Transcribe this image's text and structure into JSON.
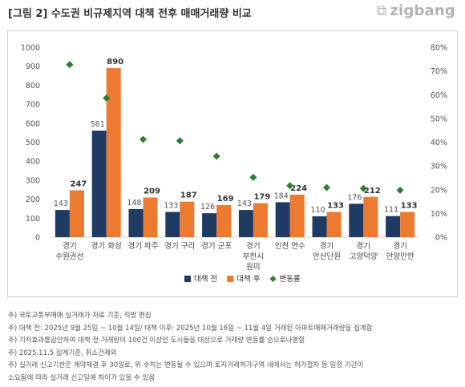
{
  "title": "[그림 2] 수도권 비규제지역 대책 전후 매매거래량 비교",
  "logo": {
    "icon": "zigbang-logo-icon",
    "text": "zigbang"
  },
  "chart_data": {
    "type": "bar",
    "categories": [
      [
        "경기",
        "수원권선"
      ],
      [
        "경기 화성"
      ],
      [
        "경기 파주"
      ],
      [
        "경기 구리"
      ],
      [
        "경기 군포"
      ],
      [
        "경기",
        "부천시",
        "원미"
      ],
      [
        "인천 연수"
      ],
      [
        "경기",
        "안산단원"
      ],
      [
        "경기",
        "고양덕양"
      ],
      [
        "경기",
        "안양만안"
      ]
    ],
    "series": [
      {
        "name": "대책 전",
        "type": "bar",
        "axis": "left",
        "color": "#1f3a63",
        "values": [
          143,
          561,
          148,
          133,
          126,
          143,
          184,
          110,
          176,
          111
        ]
      },
      {
        "name": "대책 후",
        "type": "bar",
        "axis": "left",
        "color": "#ec7a30",
        "values": [
          247,
          890,
          209,
          187,
          169,
          179,
          224,
          133,
          212,
          133
        ]
      },
      {
        "name": "변동률",
        "type": "scatter",
        "axis": "right",
        "color": "#2e7d32",
        "values": [
          72.7,
          58.6,
          41.2,
          40.6,
          34.1,
          25.2,
          21.7,
          20.9,
          20.5,
          19.8
        ]
      }
    ],
    "value_labels": {
      "before": [
        "143",
        "561",
        "148",
        "133",
        "126",
        "143",
        "184",
        "110",
        "176",
        "111"
      ],
      "after": [
        "247",
        "890",
        "209",
        "187",
        "169",
        "179",
        "224",
        "133",
        "212",
        "133"
      ]
    },
    "ylim": [
      0,
      1000
    ],
    "y_ticks": [
      "0",
      "100",
      "200",
      "300",
      "400",
      "500",
      "600",
      "700",
      "800",
      "900",
      "1000"
    ],
    "y2lim": [
      0,
      80
    ],
    "y2_ticks": [
      "0%",
      "10%",
      "20%",
      "30%",
      "40%",
      "50%",
      "60%",
      "70%",
      "80%"
    ],
    "grid": false,
    "legend_position": "bottom"
  },
  "notes": [
    "주) 국토교통부매매 실거래가 자료 기준, 직방 편집",
    "주) 대책 전: 2025년 9월 25일 ~ 10월 14일/ 대책 이후: 2025년 10월 16일 ~ 11월 4일 거래된 아파트매매거래량을 집계함",
    "주) 기저효과를감안하여 대책 전 거래량이 100건 이상인 도시들을 대상으로 거래량 변동률 순으로나열함",
    "주) 2025.11.5 집계기준, 취소건제외",
    "주) 실거래 신고기한은 계약체결 후 30일로, 위 수치는 변동될 수 있으며 토지거래허가구역 내에서는 허가절차 등 일정 기간이",
    "소요됨에 따라 실거래 신고일에 차이가 있을 수 있음"
  ]
}
